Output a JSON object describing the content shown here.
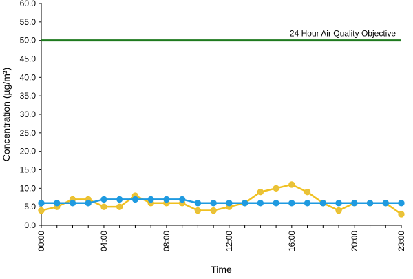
{
  "chart_data": {
    "type": "line",
    "title": "",
    "xlabel": "Time",
    "ylabel": "Concentration (µg/m³)",
    "ylim": [
      0,
      60
    ],
    "yticks": [
      "0.0",
      "5.0",
      "10.0",
      "15.0",
      "20.0",
      "25.0",
      "30.0",
      "35.0",
      "40.0",
      "45.0",
      "50.0",
      "55.0",
      "60.0"
    ],
    "xticks": [
      {
        "label": "00:00",
        "index": 0
      },
      {
        "label": "04:00",
        "index": 4
      },
      {
        "label": "08:00",
        "index": 8
      },
      {
        "label": "12:00",
        "index": 12
      },
      {
        "label": "16:00",
        "index": 16
      },
      {
        "label": "20:00",
        "index": 20
      },
      {
        "label": "23:00",
        "index": 23
      }
    ],
    "x": [
      "00:00",
      "01:00",
      "02:00",
      "03:00",
      "04:00",
      "05:00",
      "06:00",
      "07:00",
      "08:00",
      "09:00",
      "10:00",
      "11:00",
      "12:00",
      "13:00",
      "14:00",
      "15:00",
      "16:00",
      "17:00",
      "18:00",
      "19:00",
      "20:00",
      "21:00",
      "22:00",
      "23:00"
    ],
    "series": [
      {
        "color": "#f0c020",
        "marker_fill": "#e7c23d",
        "values": [
          4,
          5,
          7,
          7,
          5,
          5,
          8,
          6,
          6,
          6,
          4,
          4,
          5,
          6,
          9,
          10,
          11,
          9,
          6,
          4,
          6,
          6,
          6,
          3
        ]
      },
      {
        "color": "#1f9ae0",
        "marker_fill": "#1f9ae0",
        "values": [
          6,
          6,
          6,
          6,
          7,
          7,
          7,
          7,
          7,
          7,
          6,
          6,
          6,
          6,
          6,
          6,
          6,
          6,
          6,
          6,
          6,
          6,
          6,
          6
        ]
      }
    ],
    "reference_line": {
      "value": 50,
      "label": "24 Hour Air Quality Objective",
      "color": "#1e7a1e"
    },
    "grid": false,
    "legend": "none"
  }
}
